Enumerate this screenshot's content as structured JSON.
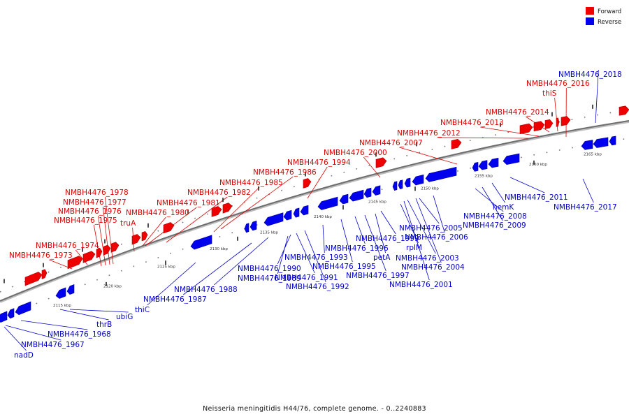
{
  "legend": {
    "forward_label": "Forward",
    "reverse_label": "Reverse",
    "forward_color": "#ee0000",
    "reverse_color": "#0000ee"
  },
  "caption": "Neisseria meningitidis H44/76, complete genome. - 0..2240883",
  "kbp_ticks": [
    "2115 kbp",
    "2120 kbp",
    "2125 kbp",
    "2130 kbp",
    "2135 kbp",
    "2140 kbp",
    "2145 kbp",
    "2150 kbp",
    "2155 kbp",
    "2160 kbp",
    "2165 kbp"
  ],
  "forward_genes": [
    "NMBH4476_1973",
    "NMBH4476_1974",
    "NMBH4476_1975",
    "NMBH4476_1976",
    "NMBH4476_1977",
    "NMBH4476_1978",
    "truA",
    "NMBH4476_1980",
    "NMBH4476_1981",
    "NMBH4476_1982",
    "NMBH4476_1985",
    "NMBH4476_1986",
    "NMBH4476_1994",
    "NMBH4476_2000",
    "NMBH4476_2007",
    "NMBH4476_2012",
    "NMBH4476_2013",
    "NMBH4476_2014",
    "thiS",
    "NMBH4476_2016"
  ],
  "reverse_genes": [
    "nadD",
    "NMBH4476_1967",
    "NMBH4476_1968",
    "thrB",
    "ubiG",
    "thiC",
    "NMBH4476_1987",
    "NMBH4476_1988",
    "NMBH4476_1989",
    "NMBH4476_1990",
    "NMBH4476_1991",
    "NMBH4476_1992",
    "NMBH4476_1993",
    "NMBH4476_1995",
    "NMBH4476_1996",
    "NMBH4476_1997",
    "petA",
    "NMBH4476_1999",
    "rplM",
    "NMBH4476_2001",
    "NMBH4476_2003",
    "NMBH4476_2004",
    "NMBH4476_2005",
    "NMBH4476_2006",
    "NMBH4476_2008",
    "NMBH4476_2009",
    "hemK",
    "NMBH4476_2011",
    "NMBH4476_2017",
    "NMBH4476_2018"
  ]
}
